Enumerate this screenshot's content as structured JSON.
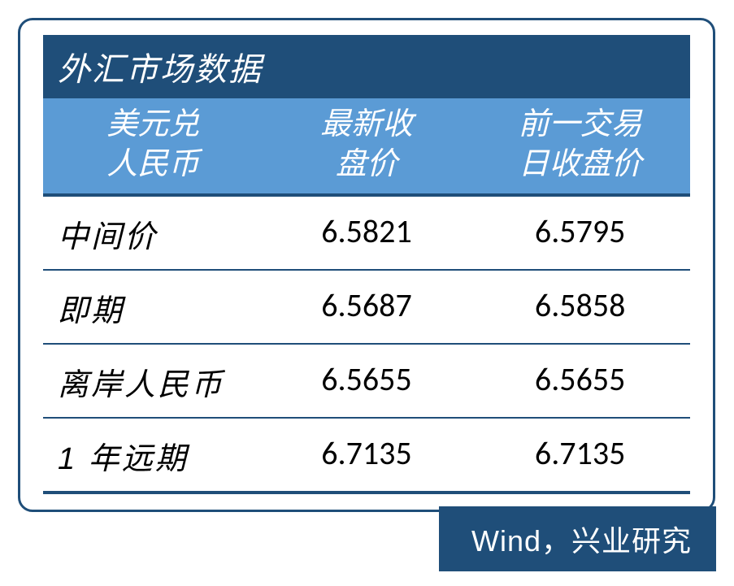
{
  "table": {
    "title": "外汇市场数据",
    "title_bg": "#1f4e79",
    "title_color": "#ffffff",
    "title_fontsize": 40,
    "header_bg": "#5b9bd5",
    "header_color": "#ffffff",
    "header_fontsize": 38,
    "border_color": "#1f4e79",
    "columns": [
      {
        "line1": "美元兑",
        "line2": "人民币"
      },
      {
        "line1": "最新收",
        "line2": "盘价"
      },
      {
        "line1": "前一交易",
        "line2": "日收盘价"
      }
    ],
    "rows": [
      {
        "label": "中间价",
        "latest": "6.5821",
        "prev": "6.5795"
      },
      {
        "label": "即期",
        "latest": "6.5687",
        "prev": "6.5858"
      },
      {
        "label": "离岸人民币",
        "latest": "6.5655",
        "prev": "6.5655"
      },
      {
        "label": "1 年远期",
        "latest": "6.7135",
        "prev": "6.7135"
      }
    ],
    "column_widths": [
      "34%",
      "32%",
      "34%"
    ],
    "row_fontsize": 38,
    "value_fontsize": 40
  },
  "source": {
    "text": "Wind，兴业研究",
    "bg": "#1f4e79",
    "color": "#ffffff",
    "fontsize": 36
  },
  "frame": {
    "border_color": "#1f4e79",
    "border_radius": 18,
    "border_width": 3
  }
}
